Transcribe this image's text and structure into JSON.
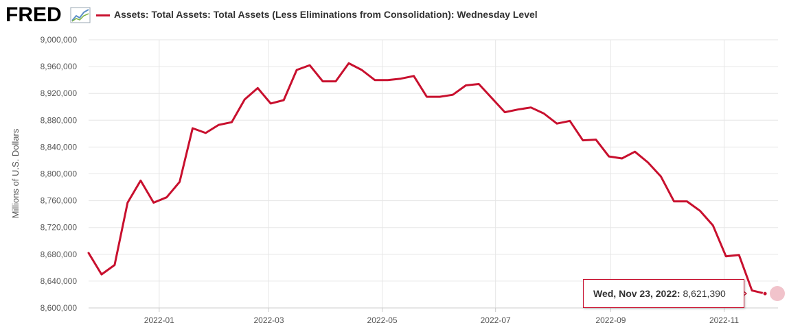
{
  "logo": {
    "text": "FRED",
    "icon": "line-graph-icon"
  },
  "legend": {
    "label": "Assets: Total Assets: Total Assets (Less Eliminations from Consolidation): Wednesday Level"
  },
  "tooltip": {
    "date": "Wed, Nov 23, 2022:",
    "value": "8,621,390"
  },
  "colors": {
    "series": "#c8102e",
    "grid": "#e6e6e6",
    "axis_text": "#555555"
  },
  "chart_data": {
    "type": "line",
    "title": "",
    "xlabel": "",
    "ylabel": "Millions of U.S. Dollars",
    "ylim": [
      8600000,
      9000000
    ],
    "y_ticks": [
      8600000,
      8640000,
      8680000,
      8720000,
      8760000,
      8800000,
      8840000,
      8880000,
      8920000,
      8960000,
      9000000
    ],
    "y_tick_labels": [
      "8,600,000",
      "8,640,000",
      "8,680,000",
      "8,720,000",
      "8,760,000",
      "8,800,000",
      "8,840,000",
      "8,880,000",
      "8,920,000",
      "8,960,000",
      "9,000,000"
    ],
    "xlim": [
      "2021-11-24",
      "2022-11-30"
    ],
    "x_ticks": [
      "2022-01-01",
      "2022-03-01",
      "2022-05-01",
      "2022-07-01",
      "2022-09-01",
      "2022-11-01"
    ],
    "x_tick_labels": [
      "2022-01",
      "2022-03",
      "2022-05",
      "2022-07",
      "2022-09",
      "2022-11"
    ],
    "grid": true,
    "series": [
      {
        "name": "Assets: Total Assets: Total Assets (Less Eliminations from Consolidation): Wednesday Level",
        "color": "#c8102e",
        "x": [
          "2021-11-24",
          "2021-12-01",
          "2021-12-08",
          "2021-12-15",
          "2021-12-22",
          "2021-12-29",
          "2022-01-05",
          "2022-01-12",
          "2022-01-19",
          "2022-01-26",
          "2022-02-02",
          "2022-02-09",
          "2022-02-16",
          "2022-02-23",
          "2022-03-02",
          "2022-03-09",
          "2022-03-16",
          "2022-03-23",
          "2022-03-30",
          "2022-04-06",
          "2022-04-13",
          "2022-04-20",
          "2022-04-27",
          "2022-05-04",
          "2022-05-11",
          "2022-05-18",
          "2022-05-25",
          "2022-06-01",
          "2022-06-08",
          "2022-06-15",
          "2022-06-22",
          "2022-06-29",
          "2022-07-06",
          "2022-07-13",
          "2022-07-20",
          "2022-07-27",
          "2022-08-03",
          "2022-08-10",
          "2022-08-17",
          "2022-08-24",
          "2022-08-31",
          "2022-09-07",
          "2022-09-14",
          "2022-09-21",
          "2022-09-28",
          "2022-10-05",
          "2022-10-12",
          "2022-10-19",
          "2022-10-26",
          "2022-11-02",
          "2022-11-09",
          "2022-11-16",
          "2022-11-23"
        ],
        "values": [
          8682000,
          8650000,
          8664000,
          8757000,
          8790000,
          8757000,
          8765000,
          8788000,
          8868000,
          8861000,
          8873000,
          8877000,
          8911000,
          8928000,
          8905000,
          8910000,
          8955000,
          8962000,
          8938000,
          8938000,
          8965000,
          8955000,
          8940000,
          8940000,
          8942000,
          8946000,
          8915000,
          8915000,
          8918000,
          8932000,
          8934000,
          8913000,
          8892000,
          8896000,
          8899000,
          8890000,
          8875000,
          8879000,
          8850000,
          8851000,
          8826000,
          8823000,
          8833000,
          8817000,
          8796000,
          8759000,
          8759000,
          8745000,
          8723000,
          8677000,
          8679000,
          8626000,
          8621390
        ]
      }
    ]
  }
}
